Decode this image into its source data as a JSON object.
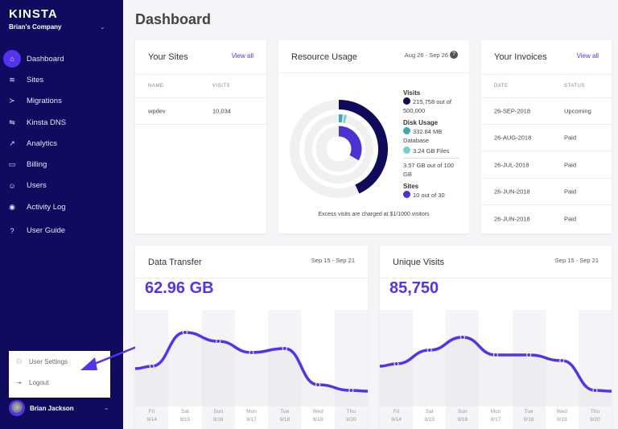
{
  "sidebar": {
    "logo": "KINSTA",
    "company": "Brian's Company",
    "items": [
      {
        "label": "Dashboard",
        "icon": "home-icon",
        "glyph": "⌂"
      },
      {
        "label": "Sites",
        "icon": "layers-icon",
        "glyph": "≋"
      },
      {
        "label": "Migrations",
        "icon": "migrate-icon",
        "glyph": "≻"
      },
      {
        "label": "Kinsta DNS",
        "icon": "dns-icon",
        "glyph": "⇋"
      },
      {
        "label": "Analytics",
        "icon": "trend-icon",
        "glyph": "↗"
      },
      {
        "label": "Billing",
        "icon": "card-icon",
        "glyph": "▭"
      },
      {
        "label": "Users",
        "icon": "add-user-icon",
        "glyph": "☺"
      },
      {
        "label": "Activity Log",
        "icon": "eye-icon",
        "glyph": "◉"
      },
      {
        "label": "User Guide",
        "icon": "help-icon",
        "glyph": "?"
      }
    ],
    "menu": {
      "settings": "User Settings",
      "logout": "Logout"
    },
    "user": "Brian Jackson"
  },
  "page_title": "Dashboard",
  "sites": {
    "title": "Your Sites",
    "link": "View all",
    "headers": [
      "NAME",
      "VISITS"
    ],
    "rows": [
      [
        "wpdev",
        "10,034"
      ]
    ]
  },
  "resource": {
    "title": "Resource Usage",
    "range": "Aug 26 - Sep 26",
    "visits_label": "Visits",
    "visits": "215,758 out of 500,000",
    "disk_label": "Disk Usage",
    "db": "332.84 MB Database",
    "files": "3.24 GB Files",
    "disk_total": "3.57 GB out of 100 GB",
    "sites_label": "Sites",
    "sites": "10 out of 30",
    "note": "Excess visits are charged at $1/1000 visitors",
    "colors": {
      "visits": "#0f0a5c",
      "db": "#3fa9ad",
      "files": "#6fd0d6",
      "sites": "#4a32d3"
    }
  },
  "invoices": {
    "title": "Your Invoices",
    "link": "View all",
    "headers": [
      "DATE",
      "STATUS"
    ],
    "rows": [
      [
        "26-SEP-2018",
        "Upcoming"
      ],
      [
        "26-AUG-2018",
        "Paid"
      ],
      [
        "26-JUL-2018",
        "Paid"
      ],
      [
        "26-JUN-2018",
        "Paid"
      ],
      [
        "26-JUN-2018",
        "Paid"
      ]
    ]
  },
  "chart_data": [
    {
      "type": "area",
      "title": "Data Transfer",
      "range": "Sep 15 - Sep 21",
      "total": "62.96 GB",
      "days": [
        "Fri",
        "Sat",
        "Sun",
        "Mon",
        "Tue",
        "Wed",
        "Thu"
      ],
      "dates": [
        "9/14",
        "9/15",
        "9/16",
        "9/17",
        "9/18",
        "9/19",
        "9/20"
      ],
      "values": [
        45,
        87,
        76,
        62,
        67,
        22,
        15
      ],
      "color": "#5333ed"
    },
    {
      "type": "area",
      "title": "Unique Visits",
      "range": "Sep 15 - Sep 21",
      "total": "85,750",
      "days": [
        "Fri",
        "Sat",
        "Sun",
        "Mon",
        "Tue",
        "Wed",
        "Thu"
      ],
      "dates": [
        "9/14",
        "9/15",
        "9/16",
        "9/17",
        "9/18",
        "9/19",
        "9/20"
      ],
      "values": [
        48,
        65,
        81,
        59,
        59,
        52,
        15
      ],
      "color": "#5333ed"
    }
  ]
}
